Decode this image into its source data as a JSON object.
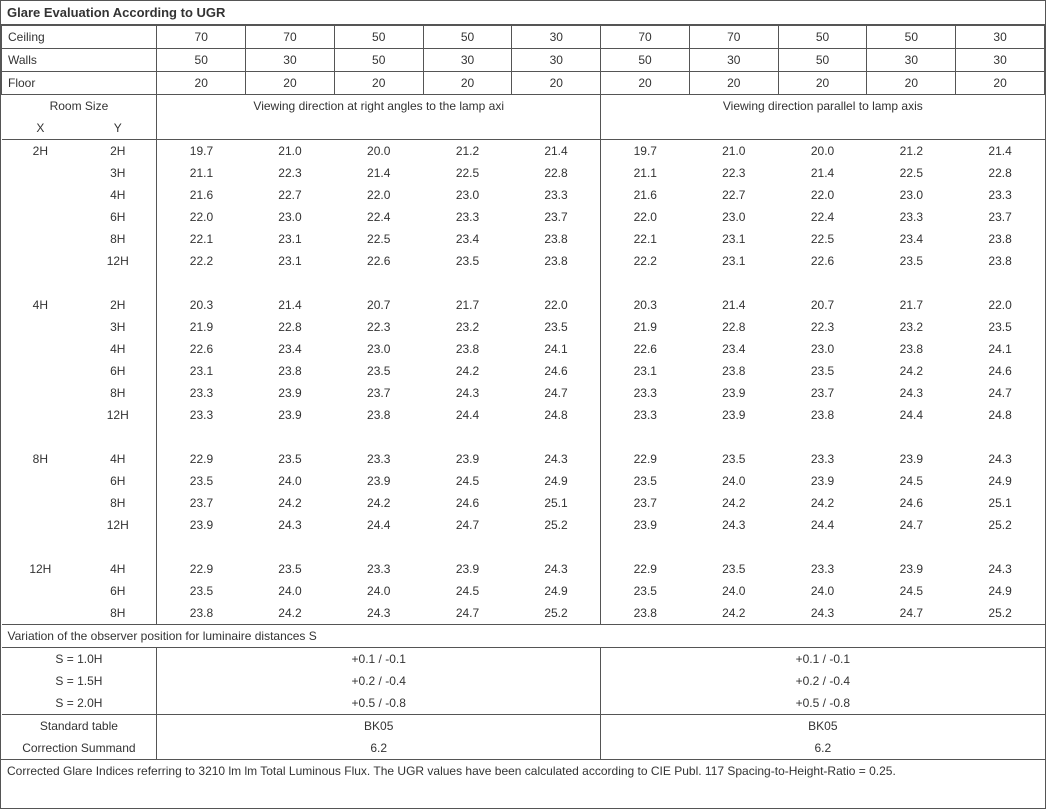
{
  "title": "Glare Evaluation According to UGR",
  "header_rows": [
    {
      "label": "Ceiling",
      "vals": [
        "70",
        "70",
        "50",
        "50",
        "30",
        "70",
        "70",
        "50",
        "50",
        "30"
      ]
    },
    {
      "label": "Walls",
      "vals": [
        "50",
        "30",
        "50",
        "30",
        "30",
        "50",
        "30",
        "50",
        "30",
        "30"
      ]
    },
    {
      "label": "Floor",
      "vals": [
        "20",
        "20",
        "20",
        "20",
        "20",
        "20",
        "20",
        "20",
        "20",
        "20"
      ]
    }
  ],
  "room_size_label": "Room Size",
  "x_label": "X",
  "y_label": "Y",
  "dir1": "Viewing direction at right angles to the lamp axi",
  "dir2": "Viewing direction parallel to lamp axis",
  "groups": [
    {
      "x": "2H",
      "rows": [
        {
          "y": "2H",
          "a": [
            "19.7",
            "21.0",
            "20.0",
            "21.2",
            "21.4"
          ],
          "b": [
            "19.7",
            "21.0",
            "20.0",
            "21.2",
            "21.4"
          ]
        },
        {
          "y": "3H",
          "a": [
            "21.1",
            "22.3",
            "21.4",
            "22.5",
            "22.8"
          ],
          "b": [
            "21.1",
            "22.3",
            "21.4",
            "22.5",
            "22.8"
          ]
        },
        {
          "y": "4H",
          "a": [
            "21.6",
            "22.7",
            "22.0",
            "23.0",
            "23.3"
          ],
          "b": [
            "21.6",
            "22.7",
            "22.0",
            "23.0",
            "23.3"
          ]
        },
        {
          "y": "6H",
          "a": [
            "22.0",
            "23.0",
            "22.4",
            "23.3",
            "23.7"
          ],
          "b": [
            "22.0",
            "23.0",
            "22.4",
            "23.3",
            "23.7"
          ]
        },
        {
          "y": "8H",
          "a": [
            "22.1",
            "23.1",
            "22.5",
            "23.4",
            "23.8"
          ],
          "b": [
            "22.1",
            "23.1",
            "22.5",
            "23.4",
            "23.8"
          ]
        },
        {
          "y": "12H",
          "a": [
            "22.2",
            "23.1",
            "22.6",
            "23.5",
            "23.8"
          ],
          "b": [
            "22.2",
            "23.1",
            "22.6",
            "23.5",
            "23.8"
          ]
        }
      ]
    },
    {
      "x": "4H",
      "rows": [
        {
          "y": "2H",
          "a": [
            "20.3",
            "21.4",
            "20.7",
            "21.7",
            "22.0"
          ],
          "b": [
            "20.3",
            "21.4",
            "20.7",
            "21.7",
            "22.0"
          ]
        },
        {
          "y": "3H",
          "a": [
            "21.9",
            "22.8",
            "22.3",
            "23.2",
            "23.5"
          ],
          "b": [
            "21.9",
            "22.8",
            "22.3",
            "23.2",
            "23.5"
          ]
        },
        {
          "y": "4H",
          "a": [
            "22.6",
            "23.4",
            "23.0",
            "23.8",
            "24.1"
          ],
          "b": [
            "22.6",
            "23.4",
            "23.0",
            "23.8",
            "24.1"
          ]
        },
        {
          "y": "6H",
          "a": [
            "23.1",
            "23.8",
            "23.5",
            "24.2",
            "24.6"
          ],
          "b": [
            "23.1",
            "23.8",
            "23.5",
            "24.2",
            "24.6"
          ]
        },
        {
          "y": "8H",
          "a": [
            "23.3",
            "23.9",
            "23.7",
            "24.3",
            "24.7"
          ],
          "b": [
            "23.3",
            "23.9",
            "23.7",
            "24.3",
            "24.7"
          ]
        },
        {
          "y": "12H",
          "a": [
            "23.3",
            "23.9",
            "23.8",
            "24.4",
            "24.8"
          ],
          "b": [
            "23.3",
            "23.9",
            "23.8",
            "24.4",
            "24.8"
          ]
        }
      ]
    },
    {
      "x": "8H",
      "rows": [
        {
          "y": "4H",
          "a": [
            "22.9",
            "23.5",
            "23.3",
            "23.9",
            "24.3"
          ],
          "b": [
            "22.9",
            "23.5",
            "23.3",
            "23.9",
            "24.3"
          ]
        },
        {
          "y": "6H",
          "a": [
            "23.5",
            "24.0",
            "23.9",
            "24.5",
            "24.9"
          ],
          "b": [
            "23.5",
            "24.0",
            "23.9",
            "24.5",
            "24.9"
          ]
        },
        {
          "y": "8H",
          "a": [
            "23.7",
            "24.2",
            "24.2",
            "24.6",
            "25.1"
          ],
          "b": [
            "23.7",
            "24.2",
            "24.2",
            "24.6",
            "25.1"
          ]
        },
        {
          "y": "12H",
          "a": [
            "23.9",
            "24.3",
            "24.4",
            "24.7",
            "25.2"
          ],
          "b": [
            "23.9",
            "24.3",
            "24.4",
            "24.7",
            "25.2"
          ]
        }
      ]
    },
    {
      "x": "12H",
      "rows": [
        {
          "y": "4H",
          "a": [
            "22.9",
            "23.5",
            "23.3",
            "23.9",
            "24.3"
          ],
          "b": [
            "22.9",
            "23.5",
            "23.3",
            "23.9",
            "24.3"
          ]
        },
        {
          "y": "6H",
          "a": [
            "23.5",
            "24.0",
            "24.0",
            "24.5",
            "24.9"
          ],
          "b": [
            "23.5",
            "24.0",
            "24.0",
            "24.5",
            "24.9"
          ]
        },
        {
          "y": "8H",
          "a": [
            "23.8",
            "24.2",
            "24.3",
            "24.7",
            "25.2"
          ],
          "b": [
            "23.8",
            "24.2",
            "24.3",
            "24.7",
            "25.2"
          ]
        }
      ]
    }
  ],
  "variation_label": "Variation of the observer position for luminaire distances S",
  "variation_rows": [
    {
      "label": "S = 1.0H",
      "a": "+0.1 / -0.1",
      "b": "+0.1 / -0.1"
    },
    {
      "label": "S = 1.5H",
      "a": "+0.2 / -0.4",
      "b": "+0.2 / -0.4"
    },
    {
      "label": "S = 2.0H",
      "a": "+0.5 / -0.8",
      "b": "+0.5 / -0.8"
    }
  ],
  "std_table_label": "Standard table",
  "std_table_a": "BK05",
  "std_table_b": "BK05",
  "corr_label": "Correction Summand",
  "corr_a": "6.2",
  "corr_b": "6.2",
  "footnote": "Corrected Glare Indices referring to 3210 lm lm Total Luminous Flux. The UGR values have been calculated according to CIE Publ. 117    Spacing-to-Height-Ratio = 0.25."
}
